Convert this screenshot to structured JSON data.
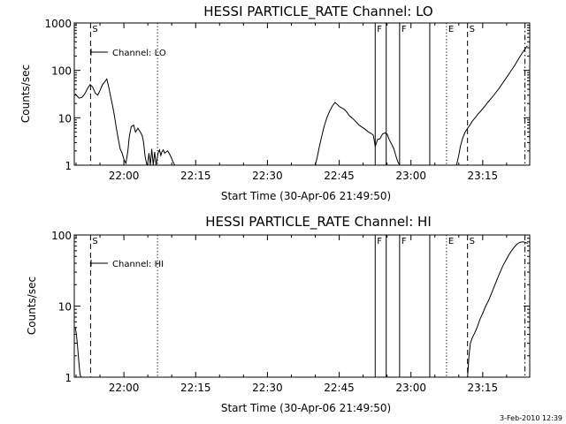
{
  "footer": {
    "stamp": "3-Feb-2010 12:39"
  },
  "chart_data": [
    {
      "type": "line",
      "title": "HESSI PARTICLE_RATE Channel: LO",
      "xlabel": "Start Time (30-Apr-06 21:49:50)",
      "ylabel": "Counts/sec",
      "yscale": "log",
      "xlim_min": [
        -0.2,
        95
      ],
      "ylim": [
        1,
        1000
      ],
      "xticks": [
        {
          "m": 10.17,
          "label": "22:00"
        },
        {
          "m": 25.17,
          "label": "22:15"
        },
        {
          "m": 40.17,
          "label": "22:30"
        },
        {
          "m": 55.17,
          "label": "22:45"
        },
        {
          "m": 70.17,
          "label": "23:00"
        },
        {
          "m": 85.17,
          "label": "23:15"
        }
      ],
      "yticks": [
        {
          "v": 1,
          "label": "1"
        },
        {
          "v": 10,
          "label": "10"
        },
        {
          "v": 100,
          "label": "100"
        },
        {
          "v": 1000,
          "label": "1000"
        }
      ],
      "legend": {
        "label": "Channel: LO",
        "position": "top-left"
      },
      "vlines": [
        {
          "m": 3.2,
          "style": "dashed",
          "label": "S"
        },
        {
          "m": 17.2,
          "style": "dotted",
          "label": ""
        },
        {
          "m": 62.7,
          "style": "solid",
          "label": "F"
        },
        {
          "m": 65.0,
          "style": "solid",
          "label": ""
        },
        {
          "m": 67.8,
          "style": "solid",
          "label": "F"
        },
        {
          "m": 74.1,
          "style": "solid",
          "label": ""
        },
        {
          "m": 77.6,
          "style": "dotted",
          "label": "E"
        },
        {
          "m": 82.0,
          "style": "dashed",
          "label": "S"
        },
        {
          "m": 94.0,
          "style": "dashdot",
          "label": ""
        }
      ],
      "series": [
        {
          "segments": [
            [
              [
                0,
                32
              ],
              [
                0.8,
                26
              ],
              [
                1.4,
                27
              ],
              [
                2,
                32
              ],
              [
                2.6,
                42
              ],
              [
                3.1,
                50
              ],
              [
                3.6,
                45
              ],
              [
                4.2,
                33
              ],
              [
                4.7,
                30
              ],
              [
                5.2,
                38
              ],
              [
                5.7,
                50
              ],
              [
                6.2,
                58
              ],
              [
                6.6,
                66
              ],
              [
                7.0,
                45
              ],
              [
                7.4,
                28
              ],
              [
                7.8,
                18
              ],
              [
                8.2,
                11
              ],
              [
                8.6,
                6
              ],
              [
                9.0,
                3.5
              ],
              [
                9.4,
                2.2
              ],
              [
                9.8,
                1.8
              ],
              [
                10.2,
                1.3
              ],
              [
                10.6,
                1.1
              ],
              [
                11.0,
                2.0
              ],
              [
                11.3,
                4.0
              ],
              [
                11.7,
                6.5
              ],
              [
                12.2,
                7.0
              ],
              [
                12.6,
                5.0
              ],
              [
                13.1,
                6.0
              ],
              [
                13.6,
                5.0
              ],
              [
                14.0,
                4.2
              ],
              [
                14.3,
                3.0
              ],
              [
                14.6,
                1.5
              ],
              [
                15.0,
                1.0
              ]
            ],
            [
              [
                15.1,
                1
              ],
              [
                15.4,
                1.8
              ],
              [
                15.7,
                1
              ],
              [
                16.0,
                2.2
              ],
              [
                16.3,
                1
              ],
              [
                16.6,
                1.9
              ],
              [
                16.9,
                1
              ],
              [
                17.3,
                1.8
              ],
              [
                17.6,
                2.1
              ],
              [
                17.9,
                1.6
              ],
              [
                18.1,
                1.9
              ],
              [
                18.4,
                2.1
              ],
              [
                18.7,
                1.8
              ],
              [
                19.0,
                1.9
              ],
              [
                19.3,
                2.0
              ],
              [
                19.6,
                1.8
              ],
              [
                20.0,
                1.5
              ],
              [
                20.4,
                1.2
              ],
              [
                20.8,
                1.0
              ]
            ],
            [
              [
                50.2,
                1.0
              ],
              [
                50.6,
                1.5
              ],
              [
                51.0,
                2.4
              ],
              [
                51.5,
                4.0
              ],
              [
                52.0,
                6.5
              ],
              [
                52.6,
                10
              ],
              [
                53.2,
                14
              ],
              [
                53.8,
                18
              ],
              [
                54.3,
                21
              ],
              [
                54.8,
                19
              ],
              [
                55.3,
                17
              ],
              [
                55.8,
                16
              ],
              [
                56.3,
                15
              ],
              [
                56.8,
                13
              ],
              [
                57.3,
                11
              ],
              [
                57.8,
                10
              ],
              [
                58.3,
                9
              ],
              [
                58.8,
                8
              ],
              [
                59.3,
                7
              ],
              [
                59.8,
                6.5
              ],
              [
                60.3,
                6.0
              ],
              [
                60.8,
                5.5
              ],
              [
                61.3,
                5.0
              ],
              [
                61.8,
                4.7
              ],
              [
                62.3,
                4.3
              ],
              [
                62.7,
                2.5
              ],
              [
                63.2,
                3.5
              ],
              [
                63.7,
                3.6
              ],
              [
                64.2,
                4.5
              ],
              [
                64.7,
                4.8
              ],
              [
                65.2,
                4.5
              ],
              [
                65.6,
                3.5
              ],
              [
                66.1,
                2.8
              ],
              [
                66.6,
                2.2
              ],
              [
                67.0,
                1.6
              ],
              [
                67.4,
                1.2
              ],
              [
                67.8,
                1.0
              ]
            ],
            [
              [
                79.7,
                1.0
              ],
              [
                80.1,
                1.5
              ],
              [
                80.5,
                2.5
              ],
              [
                81.0,
                3.8
              ],
              [
                81.5,
                5.0
              ],
              [
                82.0,
                6.0
              ],
              [
                82.5,
                7.0
              ],
              [
                83.0,
                8.5
              ],
              [
                83.6,
                10
              ],
              [
                84.2,
                12
              ],
              [
                84.8,
                14
              ],
              [
                85.5,
                17
              ],
              [
                86.2,
                21
              ],
              [
                87.0,
                26
              ],
              [
                87.8,
                33
              ],
              [
                88.6,
                42
              ],
              [
                89.4,
                55
              ],
              [
                90.2,
                72
              ],
              [
                91.0,
                95
              ],
              [
                91.8,
                125
              ],
              [
                92.6,
                170
              ],
              [
                93.4,
                230
              ],
              [
                94.0,
                280
              ],
              [
                94.5,
                330
              ]
            ]
          ]
        }
      ]
    },
    {
      "type": "line",
      "title": "HESSI PARTICLE_RATE Channel: HI",
      "xlabel": "Start Time (30-Apr-06 21:49:50)",
      "ylabel": "Counts/sec",
      "yscale": "log",
      "xlim_min": [
        -0.2,
        95
      ],
      "ylim": [
        1,
        100
      ],
      "xticks": [
        {
          "m": 10.17,
          "label": "22:00"
        },
        {
          "m": 25.17,
          "label": "22:15"
        },
        {
          "m": 40.17,
          "label": "22:30"
        },
        {
          "m": 55.17,
          "label": "22:45"
        },
        {
          "m": 70.17,
          "label": "23:00"
        },
        {
          "m": 85.17,
          "label": "23:15"
        }
      ],
      "yticks": [
        {
          "v": 1,
          "label": "1"
        },
        {
          "v": 10,
          "label": "10"
        },
        {
          "v": 100,
          "label": "100"
        }
      ],
      "legend": {
        "label": "Channel: HI",
        "position": "top-left"
      },
      "vlines": [
        {
          "m": 3.2,
          "style": "dashed",
          "label": "S"
        },
        {
          "m": 17.2,
          "style": "dotted",
          "label": ""
        },
        {
          "m": 62.7,
          "style": "solid",
          "label": "F"
        },
        {
          "m": 65.0,
          "style": "solid",
          "label": ""
        },
        {
          "m": 67.8,
          "style": "solid",
          "label": "F"
        },
        {
          "m": 74.1,
          "style": "solid",
          "label": ""
        },
        {
          "m": 77.6,
          "style": "dotted",
          "label": "E"
        },
        {
          "m": 82.0,
          "style": "dashed",
          "label": "S"
        },
        {
          "m": 94.0,
          "style": "dashdot",
          "label": ""
        }
      ],
      "series": [
        {
          "segments": [
            [
              [
                0,
                5.0
              ],
              [
                0.2,
                4.2
              ],
              [
                0.4,
                3.2
              ],
              [
                0.6,
                2.2
              ],
              [
                0.8,
                1.5
              ],
              [
                1.0,
                1.1
              ],
              [
                1.2,
                1.0
              ]
            ],
            [
              [
                82.0,
                1.0
              ],
              [
                82.3,
                2.0
              ],
              [
                82.6,
                3.0
              ],
              [
                83.0,
                3.6
              ],
              [
                83.5,
                4.2
              ],
              [
                84.0,
                5.0
              ],
              [
                84.6,
                6.5
              ],
              [
                85.2,
                8.0
              ],
              [
                85.8,
                10
              ],
              [
                86.4,
                12
              ],
              [
                87.0,
                15
              ],
              [
                87.6,
                19
              ],
              [
                88.2,
                24
              ],
              [
                88.8,
                30
              ],
              [
                89.4,
                37
              ],
              [
                90.0,
                44
              ],
              [
                90.6,
                52
              ],
              [
                91.2,
                60
              ],
              [
                91.8,
                68
              ],
              [
                92.4,
                75
              ],
              [
                93.0,
                79
              ],
              [
                93.6,
                80
              ],
              [
                94.2,
                78
              ],
              [
                94.6,
                76
              ]
            ]
          ]
        }
      ]
    }
  ]
}
